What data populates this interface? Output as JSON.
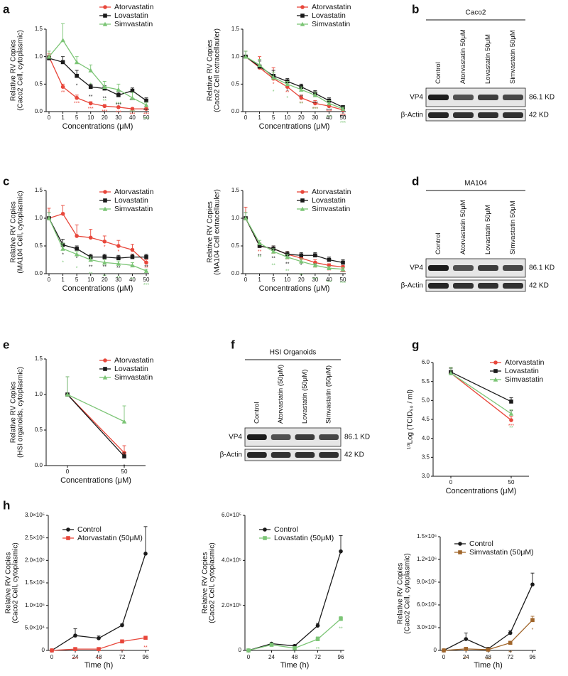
{
  "panel_labels": [
    "a",
    "b",
    "c",
    "d",
    "e",
    "f",
    "g",
    "h"
  ],
  "blots": [
    {
      "title": "Caco2",
      "lanes": [
        "Control",
        "Atorvastatin 50μM",
        "Lovastatin  50μM",
        "Simvastatin 50μM"
      ],
      "rows": [
        {
          "name": "VP4",
          "size": "86.1 KD"
        },
        {
          "name": "β-Actin",
          "size": "42 KD"
        }
      ]
    },
    {
      "title": "MA104",
      "lanes": [
        "Control",
        "Atorvastatin 50μM",
        "Lovastatin  50μM",
        "Simvastatin 50μM"
      ],
      "rows": [
        {
          "name": "VP4",
          "size": "86.1 KD"
        },
        {
          "name": "β-Actin",
          "size": "42 KD"
        }
      ]
    },
    {
      "title": "HSI Organoids",
      "lanes": [
        "Control",
        "Atorvastatin (50μM)",
        "Lovastatin (50μM)",
        "Simvastatin (50μM)"
      ],
      "rows": [
        {
          "name": "VP4",
          "size": "86.1 KD"
        },
        {
          "name": "β-Actin",
          "size": "42 KD"
        }
      ]
    }
  ],
  "chart_data": [
    {
      "type": "line",
      "xlabel": "Concentrations (μM)",
      "ylabel": [
        "Relative RV Copies",
        "(Caco2 Cell, cytoplasmic)"
      ],
      "categories": [
        "0",
        "1",
        "5",
        "10",
        "20",
        "30",
        "40",
        "50"
      ],
      "ylim": [
        0,
        1.5
      ],
      "yticks": [
        {
          "value": 0,
          "label": "0.0"
        },
        0.5,
        {
          "value": 1,
          "label": "1.0"
        },
        1.5
      ],
      "series": [
        {
          "name": "Atorvastatin",
          "color": "#e8473b",
          "marker": "circle",
          "values": [
            1.0,
            0.45,
            0.25,
            0.15,
            0.1,
            0.08,
            0.05,
            0.05
          ],
          "errors": [
            0.05,
            0.05,
            0.05,
            0.03,
            0.03,
            0.02,
            0.02,
            0.02
          ],
          "stars": [
            null,
            "**",
            "***",
            "***",
            "***",
            "***",
            "***",
            "***"
          ]
        },
        {
          "name": "Lovastatin",
          "color": "#1a1a1a",
          "marker": "square",
          "values": [
            0.97,
            0.9,
            0.65,
            0.45,
            0.42,
            0.3,
            0.38,
            0.2
          ],
          "errors": [
            0.05,
            0.1,
            0.1,
            0.05,
            0.05,
            0.05,
            0.05,
            0.05
          ],
          "stars": [
            null,
            null,
            "*",
            "**",
            "**",
            "***",
            "***",
            "***"
          ]
        },
        {
          "name": "Simvastatin",
          "color": "#7cc576",
          "marker": "triangle",
          "values": [
            1.0,
            1.3,
            0.9,
            0.75,
            0.45,
            0.4,
            0.25,
            0.12
          ],
          "errors": [
            0.1,
            0.3,
            0.1,
            0.1,
            0.1,
            0.1,
            0.1,
            0.05
          ],
          "stars": [
            null,
            null,
            null,
            "*",
            "**",
            "***",
            "***",
            "***"
          ]
        }
      ]
    },
    {
      "type": "line",
      "xlabel": "Concentrations (μM)",
      "ylabel": [
        "Relative RV Copies",
        "(Caco2 Cell extracellauler)"
      ],
      "categories": [
        "0",
        "1",
        "5",
        "10",
        "20",
        "30",
        "40",
        "50"
      ],
      "ylim": [
        0,
        1.5
      ],
      "yticks": [
        {
          "value": 0,
          "label": "0.0"
        },
        0.5,
        {
          "value": 1,
          "label": "1.0"
        },
        1.5
      ],
      "series": [
        {
          "name": "Atorvastatin",
          "color": "#e8473b",
          "marker": "circle",
          "values": [
            1.0,
            0.8,
            0.6,
            0.45,
            0.25,
            0.15,
            0.1,
            0.03
          ],
          "errors": [
            0.1,
            0.2,
            0.2,
            0.1,
            0.05,
            0.05,
            0.03,
            0.02
          ],
          "stars": [
            null,
            null,
            "*",
            "**",
            "**",
            "***",
            "***",
            "***"
          ]
        },
        {
          "name": "Lovastatin",
          "color": "#1a1a1a",
          "marker": "square",
          "values": [
            1.0,
            0.82,
            0.65,
            0.55,
            0.45,
            0.33,
            0.2,
            0.08
          ],
          "errors": [
            0.1,
            0.1,
            0.1,
            0.05,
            0.05,
            0.05,
            0.05,
            0.03
          ],
          "stars": [
            null,
            null,
            null,
            "*",
            "**",
            "***",
            "***",
            "***"
          ]
        },
        {
          "name": "Simvastatin",
          "color": "#7cc576",
          "marker": "triangle",
          "values": [
            1.0,
            0.85,
            0.62,
            0.5,
            0.4,
            0.3,
            0.15,
            0.05
          ],
          "errors": [
            0.1,
            0.1,
            0.1,
            0.05,
            0.05,
            0.05,
            0.05,
            0.03
          ],
          "stars": [
            null,
            null,
            "*",
            "*",
            "**",
            "***",
            "***",
            "***"
          ]
        }
      ]
    },
    {
      "type": "line",
      "xlabel": "Concentrations (μM)",
      "ylabel": [
        "Relative RV Copies",
        "(MA104 Cell, cytoplasmic)"
      ],
      "categories": [
        "0",
        "1",
        "5",
        "10",
        "20",
        "30",
        "40",
        "50"
      ],
      "ylim": [
        0,
        1.5
      ],
      "yticks": [
        {
          "value": 0,
          "label": "0.0"
        },
        0.5,
        {
          "value": 1,
          "label": "1.0"
        },
        1.5
      ],
      "series": [
        {
          "name": "Atorvastatin",
          "color": "#e8473b",
          "marker": "circle",
          "values": [
            1.0,
            1.08,
            0.68,
            0.65,
            0.58,
            0.5,
            0.43,
            0.2
          ],
          "errors": [
            0.18,
            0.15,
            0.2,
            0.15,
            0.1,
            0.1,
            0.1,
            0.05
          ],
          "stars": [
            null,
            null,
            null,
            null,
            "*",
            "*",
            "**",
            "**"
          ]
        },
        {
          "name": "Lovastatin",
          "color": "#1a1a1a",
          "marker": "square",
          "values": [
            1.0,
            0.52,
            0.45,
            0.3,
            0.3,
            0.28,
            0.3,
            0.3
          ],
          "errors": [
            0.1,
            0.1,
            0.05,
            0.05,
            0.05,
            0.05,
            0.05,
            0.05
          ],
          "stars": [
            null,
            "*",
            "*",
            "**",
            "**",
            "**",
            "**",
            "**"
          ]
        },
        {
          "name": "Simvastatin",
          "color": "#7cc576",
          "marker": "triangle",
          "values": [
            1.0,
            0.45,
            0.35,
            0.25,
            0.2,
            0.18,
            0.15,
            0.05
          ],
          "errors": [
            0.1,
            0.1,
            0.05,
            0.05,
            0.05,
            0.05,
            0.05,
            0.03
          ],
          "stars": [
            null,
            "*",
            "*",
            "**",
            "**",
            "**",
            "**",
            "***"
          ]
        }
      ]
    },
    {
      "type": "line",
      "xlabel": "Concentrations (μM)",
      "ylabel": [
        "Relative RV Copies",
        "(MA104 Cell extracellauler)"
      ],
      "categories": [
        "0",
        "1",
        "5",
        "10",
        "20",
        "30",
        "40",
        "50"
      ],
      "ylim": [
        0,
        1.5
      ],
      "yticks": [
        {
          "value": 0,
          "label": "0.0"
        },
        0.5,
        {
          "value": 1,
          "label": "1.0"
        },
        1.5
      ],
      "series": [
        {
          "name": "Atorvastatin",
          "color": "#e8473b",
          "marker": "circle",
          "values": [
            1.0,
            0.5,
            0.45,
            0.35,
            0.28,
            0.2,
            0.15,
            0.12
          ],
          "errors": [
            0.2,
            0.05,
            0.05,
            0.05,
            0.05,
            0.05,
            0.03,
            0.03
          ],
          "stars": [
            null,
            "**",
            "**",
            "**",
            "**",
            "**",
            "**",
            "***"
          ]
        },
        {
          "name": "Lovastatin",
          "color": "#1a1a1a",
          "marker": "square",
          "values": [
            1.0,
            0.5,
            0.45,
            0.35,
            0.33,
            0.33,
            0.25,
            0.2
          ],
          "errors": [
            0.1,
            0.05,
            0.05,
            0.05,
            0.05,
            0.05,
            0.05,
            0.05
          ],
          "stars": [
            null,
            "**",
            "**",
            "**",
            "*",
            "**",
            "**",
            "**"
          ]
        },
        {
          "name": "Simvastatin",
          "color": "#7cc576",
          "marker": "triangle",
          "values": [
            1.0,
            0.55,
            0.4,
            0.3,
            0.22,
            0.15,
            0.1,
            0.08
          ],
          "errors": [
            0.1,
            0.05,
            0.05,
            0.05,
            0.05,
            0.03,
            0.03,
            0.03
          ],
          "stars": [
            null,
            "**",
            "**",
            "**",
            "**",
            "***",
            "***",
            "***"
          ]
        }
      ]
    },
    {
      "type": "line",
      "xlabel": "Concentrations (μM)",
      "ylabel": [
        "Relative RV Copies",
        "(HSI organoids, cytoplasmic)"
      ],
      "categories": [
        "0",
        "50"
      ],
      "ylim": [
        0,
        1.5
      ],
      "yticks": [
        {
          "value": 0,
          "label": "0.0"
        },
        0.5,
        {
          "value": 1,
          "label": "1.0"
        },
        1.5
      ],
      "series": [
        {
          "name": "Atorvastatin",
          "color": "#e8473b",
          "marker": "circle",
          "values": [
            1.0,
            0.18
          ],
          "errors": [
            0.25,
            0.1
          ],
          "stars": [
            null,
            "*"
          ]
        },
        {
          "name": "Lovastatin",
          "color": "#1a1a1a",
          "marker": "square",
          "values": [
            1.0,
            0.13
          ],
          "errors": [
            0.25,
            0.05
          ],
          "stars": [
            null,
            "*"
          ]
        },
        {
          "name": "Simvastatin",
          "color": "#7cc576",
          "marker": "triangle",
          "values": [
            1.0,
            0.62
          ],
          "errors": [
            0.25,
            0.22
          ],
          "stars": [
            null,
            null
          ]
        }
      ]
    },
    {
      "type": "line",
      "xlabel": "Concentrations (μM)",
      "ylabel": "¹⁰Log (TCID₅₀ / ml)",
      "categories": [
        "0",
        "50"
      ],
      "ylim": [
        3,
        6
      ],
      "yticks": [
        {
          "value": 3,
          "label": "3.0"
        },
        3.5,
        {
          "value": 4,
          "label": "4.0"
        },
        4.5,
        {
          "value": 5,
          "label": "5.0"
        },
        5.5,
        {
          "value": 6,
          "label": "6.0"
        }
      ],
      "series": [
        {
          "name": "Atorvastatin",
          "color": "#e8473b",
          "marker": "circle",
          "values": [
            5.72,
            4.48
          ],
          "errors": [
            0.15,
            0.1
          ],
          "stars": [
            null,
            "***"
          ]
        },
        {
          "name": "Lovastatin",
          "color": "#1a1a1a",
          "marker": "square",
          "values": [
            5.75,
            4.97
          ],
          "errors": [
            0.1,
            0.1
          ],
          "stars": [
            null,
            "**"
          ]
        },
        {
          "name": "Simvastatin",
          "color": "#7cc576",
          "marker": "triangle",
          "values": [
            5.72,
            4.65
          ],
          "errors": [
            0.15,
            0.1
          ],
          "stars": [
            null,
            "**"
          ]
        }
      ]
    },
    {
      "type": "line",
      "xlabel": "Time (h)",
      "ylabel": [
        "Relative RV Copies",
        "(Caco2 Cell, cytoplasmic)"
      ],
      "x": [
        0,
        24,
        48,
        72,
        96
      ],
      "xlim": [
        0,
        96
      ],
      "xticks": [
        0,
        24,
        48,
        72,
        96
      ],
      "ylim": [
        0,
        300000
      ],
      "yticks": [
        0,
        {
          "value": 50000,
          "label": "5.0×10⁴"
        },
        {
          "value": 100000,
          "label": "1.0×10⁵"
        },
        {
          "value": 150000,
          "label": "1.5×10⁵"
        },
        {
          "value": 200000,
          "label": "2.0×10⁵"
        },
        {
          "value": 250000,
          "label": "2.5×10⁵"
        },
        {
          "value": 300000,
          "label": "3.0×10⁵"
        }
      ],
      "series": [
        {
          "name": "Control",
          "color": "#1a1a1a",
          "marker": "circle",
          "values": [
            0,
            33000,
            27000,
            56000,
            215000
          ],
          "errors": [
            0,
            15000,
            5000,
            3000,
            60000
          ],
          "stars": [
            null,
            null,
            null,
            null,
            null
          ]
        },
        {
          "name": "Atorvastatin (50μM)",
          "color": "#e8473b",
          "marker": "square",
          "values": [
            0,
            3000,
            3000,
            20000,
            28000
          ],
          "errors": [
            0,
            2000,
            2000,
            3000,
            3000
          ],
          "stars": [
            null,
            "***",
            "**",
            "**",
            "**"
          ]
        }
      ]
    },
    {
      "type": "line",
      "xlabel": "Time (h)",
      "ylabel": [
        "Relative RV Copies",
        "(Caco2 Cell, cytoplasmic)"
      ],
      "x": [
        0,
        24,
        48,
        72,
        96
      ],
      "xlim": [
        0,
        96
      ],
      "xticks": [
        0,
        24,
        48,
        72,
        96
      ],
      "ylim": [
        0,
        600000
      ],
      "yticks": [
        0,
        {
          "value": 200000,
          "label": "2.0×10⁵"
        },
        {
          "value": 400000,
          "label": "4.0×10⁵"
        },
        {
          "value": 600000,
          "label": "6.0×10⁵"
        }
      ],
      "series": [
        {
          "name": "Control",
          "color": "#1a1a1a",
          "marker": "circle",
          "values": [
            0,
            30000,
            20000,
            110000,
            440000
          ],
          "errors": [
            0,
            3000,
            5000,
            10000,
            70000
          ],
          "stars": [
            null,
            null,
            null,
            null,
            null
          ]
        },
        {
          "name": "Lovastatin (50μM)",
          "color": "#7cc576",
          "marker": "square",
          "values": [
            0,
            25000,
            10000,
            50000,
            140000
          ],
          "errors": [
            0,
            3000,
            2000,
            10000,
            10000
          ],
          "stars": [
            null,
            null,
            null,
            "**",
            "**"
          ]
        }
      ]
    },
    {
      "type": "line",
      "xlabel": "Time (h)",
      "ylabel": [
        "Relative RV Copies",
        "(Caco2 Cell, cytoplasmic)"
      ],
      "x": [
        0,
        24,
        48,
        72,
        96
      ],
      "xlim": [
        0,
        96
      ],
      "xticks": [
        0,
        24,
        48,
        72,
        96
      ],
      "ylim": [
        0,
        1500000
      ],
      "yticks": [
        0,
        {
          "value": 300000,
          "label": "3.0×10⁵"
        },
        {
          "value": 600000,
          "label": "6.0×10⁵"
        },
        {
          "value": 900000,
          "label": "9.0×10⁵"
        },
        {
          "value": 1200000,
          "label": "1.2×10⁶"
        },
        {
          "value": 1500000,
          "label": "1.5×10⁶"
        }
      ],
      "series": [
        {
          "name": "Control",
          "color": "#1a1a1a",
          "marker": "circle",
          "values": [
            0,
            150000,
            20000,
            230000,
            870000
          ],
          "errors": [
            0,
            80000,
            20000,
            30000,
            150000
          ],
          "stars": [
            null,
            null,
            null,
            null,
            null
          ]
        },
        {
          "name": "Simvastatin (50μM)",
          "color": "#a0652a",
          "marker": "square",
          "values": [
            0,
            20000,
            10000,
            100000,
            400000
          ],
          "errors": [
            0,
            10000,
            5000,
            20000,
            50000
          ],
          "stars": [
            null,
            "**",
            "***",
            "**",
            "*"
          ]
        }
      ]
    }
  ]
}
